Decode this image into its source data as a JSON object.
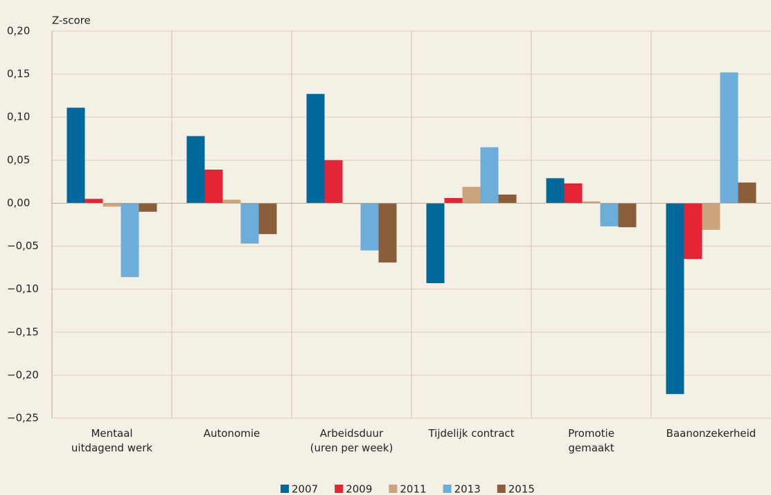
{
  "chart_data": {
    "type": "bar",
    "y_axis_label": "Z-score",
    "categories": [
      "Mentaal\nuitdagend werk",
      "Autonomie",
      "Arbeidsduur\n(uren per week)",
      "Tijdelijk contract",
      "Promotie\ngemaakt",
      "Baanonzekerheid"
    ],
    "series": [
      {
        "name": "2007",
        "color": "#00689b",
        "values": [
          0.111,
          0.078,
          0.127,
          -0.093,
          0.029,
          -0.222
        ]
      },
      {
        "name": "2009",
        "color": "#e42535",
        "values": [
          0.005,
          0.039,
          0.05,
          0.006,
          0.023,
          -0.065
        ]
      },
      {
        "name": "2011",
        "color": "#c9a47c",
        "values": [
          -0.004,
          0.004,
          -0.001,
          0.019,
          0.002,
          -0.031
        ]
      },
      {
        "name": "2013",
        "color": "#6aaed9",
        "values": [
          -0.086,
          -0.047,
          -0.055,
          0.065,
          -0.027,
          0.152
        ]
      },
      {
        "name": "2015",
        "color": "#8b5e3b",
        "values": [
          -0.01,
          -0.036,
          -0.069,
          0.01,
          -0.028,
          0.024
        ]
      }
    ],
    "ylim": [
      -0.25,
      0.2
    ],
    "yticks": [
      {
        "value": -0.25,
        "label": "−0,25"
      },
      {
        "value": -0.2,
        "label": "−0,20"
      },
      {
        "value": -0.15,
        "label": "−0,15"
      },
      {
        "value": -0.1,
        "label": "−0,10"
      },
      {
        "value": -0.05,
        "label": "−0,05"
      },
      {
        "value": 0,
        "label": "0,00"
      },
      {
        "value": 0.05,
        "label": "0,05"
      },
      {
        "value": 0.1,
        "label": "0,10"
      },
      {
        "value": 0.15,
        "label": "0,15"
      },
      {
        "value": 0.2,
        "label": "0,20"
      }
    ],
    "grid": true,
    "legend": "bottom"
  }
}
